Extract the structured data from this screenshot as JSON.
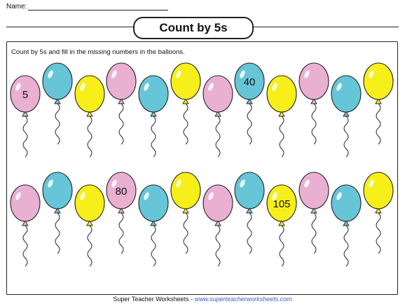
{
  "header": {
    "name_label": "Name:"
  },
  "title": "Count by 5s",
  "instructions": "Count by 5s and fill in the missing numbers in the balloons.",
  "colors": {
    "pink": "#e9b0d2",
    "blue": "#66c6d8",
    "yellow": "#f6ef1a"
  },
  "rows": [
    {
      "balloons": [
        {
          "color": "pink",
          "label": "5"
        },
        {
          "color": "blue",
          "label": ""
        },
        {
          "color": "yellow",
          "label": ""
        },
        {
          "color": "pink",
          "label": ""
        },
        {
          "color": "blue",
          "label": ""
        },
        {
          "color": "yellow",
          "label": ""
        },
        {
          "color": "pink",
          "label": ""
        },
        {
          "color": "blue",
          "label": "40"
        },
        {
          "color": "yellow",
          "label": ""
        },
        {
          "color": "pink",
          "label": ""
        },
        {
          "color": "blue",
          "label": ""
        },
        {
          "color": "yellow",
          "label": ""
        }
      ]
    },
    {
      "balloons": [
        {
          "color": "pink",
          "label": ""
        },
        {
          "color": "blue",
          "label": ""
        },
        {
          "color": "yellow",
          "label": ""
        },
        {
          "color": "pink",
          "label": "80"
        },
        {
          "color": "blue",
          "label": ""
        },
        {
          "color": "yellow",
          "label": ""
        },
        {
          "color": "pink",
          "label": ""
        },
        {
          "color": "blue",
          "label": ""
        },
        {
          "color": "yellow",
          "label": "105"
        },
        {
          "color": "pink",
          "label": ""
        },
        {
          "color": "blue",
          "label": ""
        },
        {
          "color": "yellow",
          "label": ""
        }
      ]
    }
  ],
  "footer": {
    "text": "Super Teacher Worksheets - ",
    "url": "www.superteacherworksheets.com"
  }
}
